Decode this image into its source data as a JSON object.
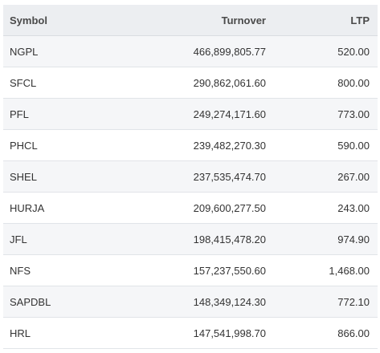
{
  "table": {
    "headers": {
      "symbol": "Symbol",
      "turnover": "Turnover",
      "ltp": "LTP"
    },
    "rows": [
      {
        "symbol": "NGPL",
        "turnover": "466,899,805.77",
        "ltp": "520.00"
      },
      {
        "symbol": "SFCL",
        "turnover": "290,862,061.60",
        "ltp": "800.00"
      },
      {
        "symbol": "PFL",
        "turnover": "249,274,171.60",
        "ltp": "773.00"
      },
      {
        "symbol": "PHCL",
        "turnover": "239,482,270.30",
        "ltp": "590.00"
      },
      {
        "symbol": "SHEL",
        "turnover": "237,535,474.70",
        "ltp": "267.00"
      },
      {
        "symbol": "HURJA",
        "turnover": "209,600,277.50",
        "ltp": "243.00"
      },
      {
        "symbol": "JFL",
        "turnover": "198,415,478.20",
        "ltp": "974.90"
      },
      {
        "symbol": "NFS",
        "turnover": "157,237,550.60",
        "ltp": "1,468.00"
      },
      {
        "symbol": "SAPDBL",
        "turnover": "148,349,124.30",
        "ltp": "772.10"
      },
      {
        "symbol": "HRL",
        "turnover": "147,541,998.70",
        "ltp": "866.00"
      }
    ]
  }
}
